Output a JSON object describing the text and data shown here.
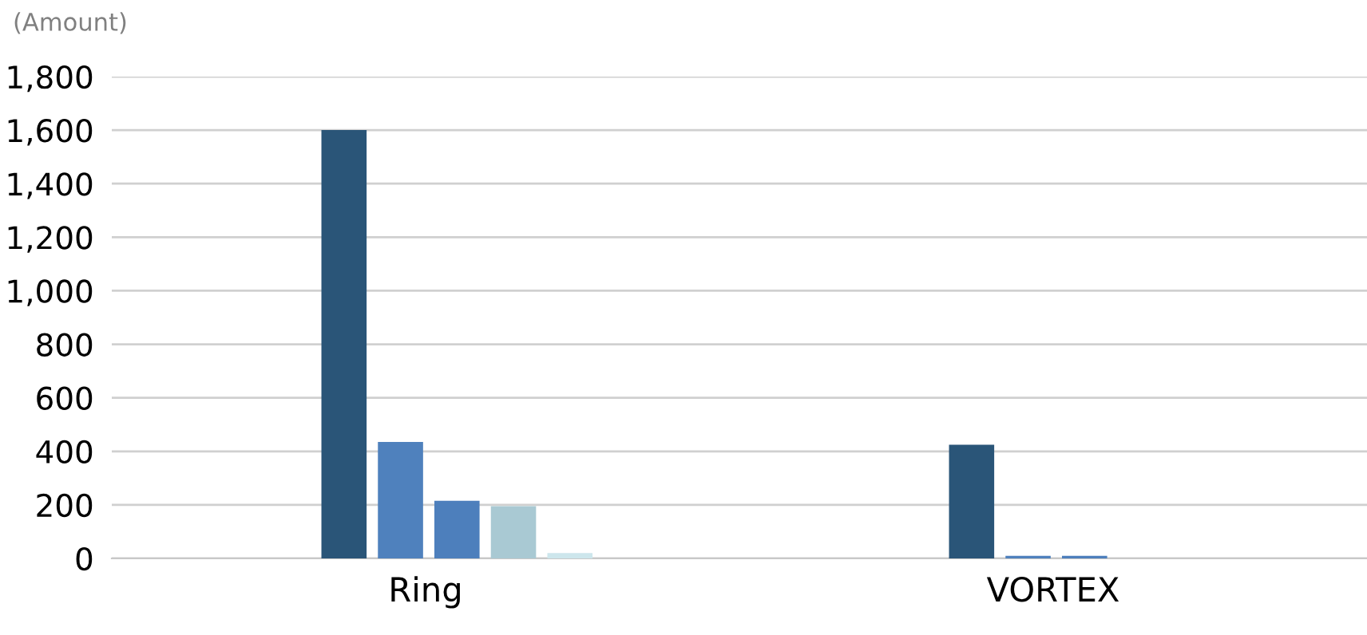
{
  "chart_data": {
    "type": "bar",
    "ylabel": "(Amount)",
    "categories": [
      "Ring",
      "VORTEX"
    ],
    "series": [
      {
        "color": "#2a5578",
        "values": [
          1600,
          425
        ]
      },
      {
        "color": "#4f81bd",
        "values": [
          435,
          10
        ]
      },
      {
        "color": "#4d7fbc",
        "values": [
          215,
          10
        ]
      },
      {
        "color": "#a9c9d3",
        "values": [
          195,
          0
        ]
      },
      {
        "color": "#cde6ec",
        "values": [
          20,
          0
        ]
      }
    ],
    "ylim": [
      0,
      1800
    ],
    "yticks": [
      0,
      200,
      400,
      600,
      800,
      {
        "value": 1000,
        "label": "1,000"
      },
      {
        "value": 1200,
        "label": "1,200"
      },
      {
        "value": 1400,
        "label": "1,400"
      },
      {
        "value": 1600,
        "label": "1,600"
      },
      {
        "value": 1800,
        "label": "1,800"
      }
    ],
    "grid": "y"
  }
}
